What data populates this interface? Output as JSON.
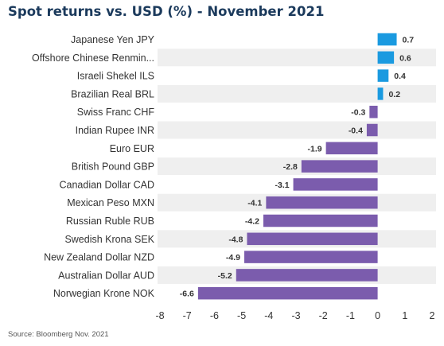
{
  "chart_data": {
    "type": "bar",
    "orientation": "horizontal",
    "title": "Spot returns vs. USD (%) - November 2021",
    "categories": [
      "Japanese Yen JPY",
      "Offshore Chinese Renmin...",
      "Israeli Shekel ILS",
      "Brazilian Real BRL",
      "Swiss Franc CHF",
      "Indian Rupee INR",
      "Euro EUR",
      "British Pound GBP",
      "Canadian Dollar CAD",
      "Mexican Peso MXN",
      "Russian Ruble RUB",
      "Swedish Krona SEK",
      "New Zealand Dollar NZD",
      "Australian Dollar AUD",
      "Norwegian Krone NOK"
    ],
    "values": [
      0.7,
      0.6,
      0.4,
      0.2,
      -0.3,
      -0.4,
      -1.9,
      -2.8,
      -3.1,
      -4.1,
      -4.2,
      -4.8,
      -4.9,
      -5.2,
      -6.6
    ],
    "value_labels": [
      "0.7",
      "0.6",
      "0.4",
      "0.2",
      "-0.3",
      "-0.4",
      "-1.9",
      "-2.8",
      "-3.1",
      "-4.1",
      "-4.2",
      "-4.8",
      "-4.9",
      "-5.2",
      "-6.6"
    ],
    "xlim": [
      -8,
      2
    ],
    "xticks": [
      -8,
      -7,
      -6,
      -5,
      -4,
      -3,
      -2,
      -1,
      0,
      1,
      2
    ],
    "xtick_labels": [
      "-8",
      "-7",
      "-6",
      "-5",
      "-4",
      "-3",
      "-2",
      "-1",
      "0",
      "1",
      "2"
    ],
    "grid": false,
    "alternating_row_bands": true,
    "colors": {
      "positive": "#1a9ae0",
      "negative": "#7b5cad",
      "row_band": "#efefef",
      "title": "#1b3a5c"
    }
  },
  "source": "Source: Bloomberg Nov. 2021"
}
